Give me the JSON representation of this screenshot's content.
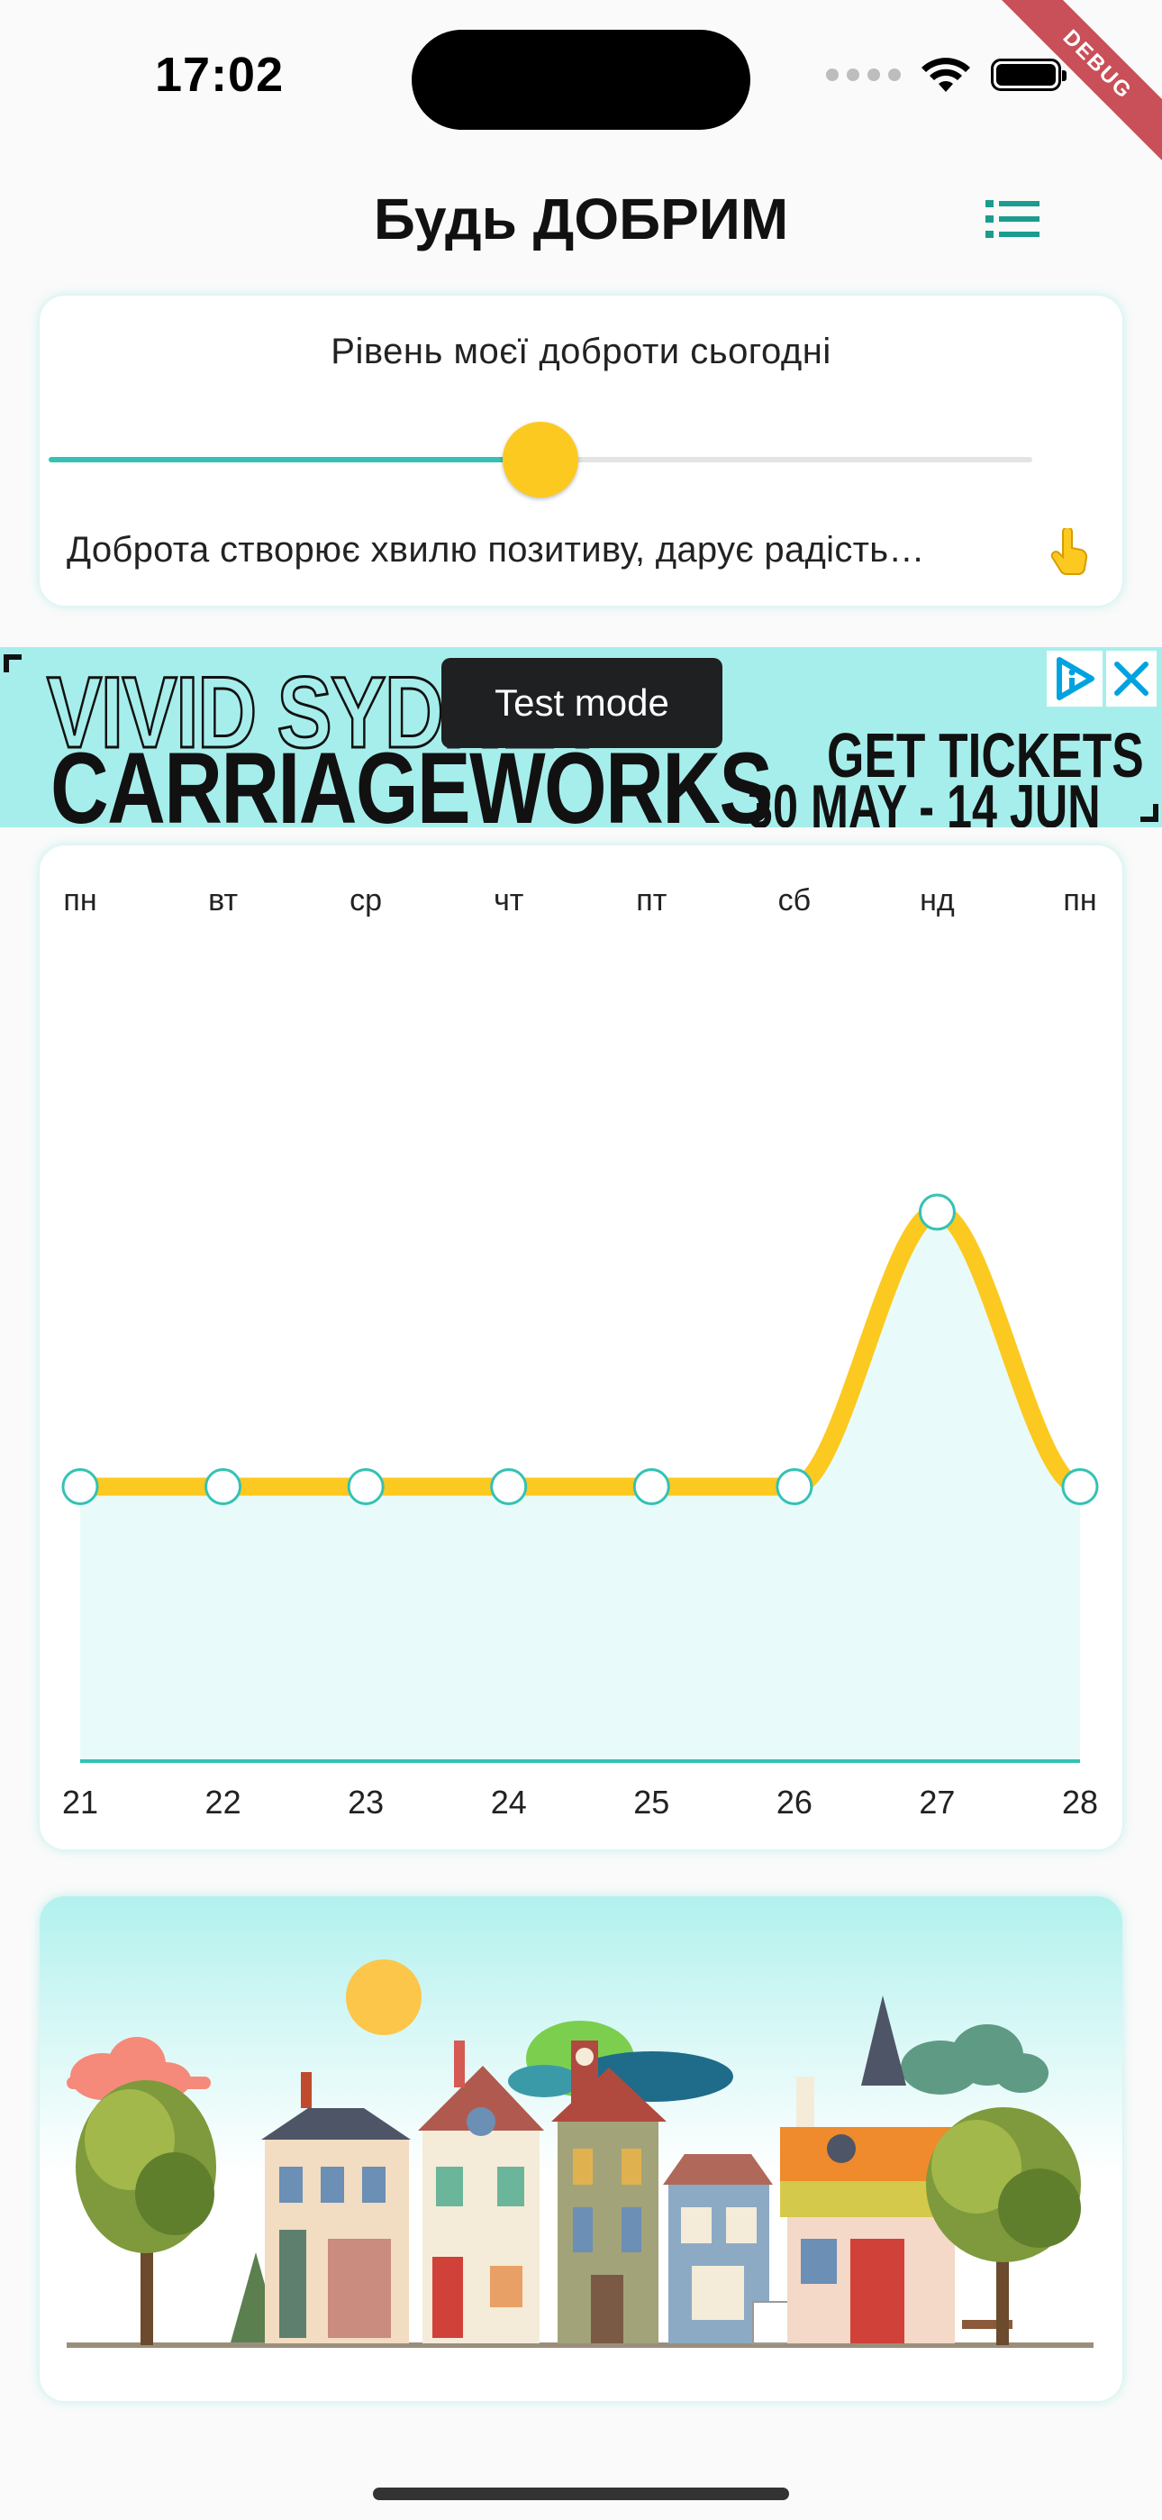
{
  "status_bar": {
    "time": "17:02",
    "debug_label": "DEBUG"
  },
  "header": {
    "title": "Будь ДОБРИМ",
    "menu_icon": "list-icon"
  },
  "kindness": {
    "title": "Рівень моєї доброти сьогодні",
    "slider_value": 0.5,
    "description": "Доброта створює хвилю позитиву, дарує радість…",
    "hand_icon": "pointing-hand-icon",
    "colors": {
      "active_track": "#34c2b3",
      "thumb": "#fcc920"
    }
  },
  "ad": {
    "line1": "VIVID SYDNEY",
    "line2": "CARRIAGEWORKS",
    "tickets": "GET TICKETS",
    "dates": "30 MAY - 14 JUN",
    "test_mode": "Test mode"
  },
  "chart_data": {
    "type": "line",
    "weekdays": [
      "пн",
      "вт",
      "ср",
      "чт",
      "пт",
      "сб",
      "нд",
      "пн"
    ],
    "x": [
      "21",
      "22",
      "23",
      "24",
      "25",
      "26",
      "27",
      "28"
    ],
    "values": [
      0.5,
      0.5,
      0.5,
      0.5,
      0.5,
      0.5,
      1.0,
      0.5
    ],
    "ylim": [
      0,
      1.1
    ],
    "line_color": "#fcc920",
    "area_color": "#e8fbfa",
    "axis_color": "#34c2b3",
    "grid": false
  },
  "town": {
    "image": "town-illustration"
  }
}
